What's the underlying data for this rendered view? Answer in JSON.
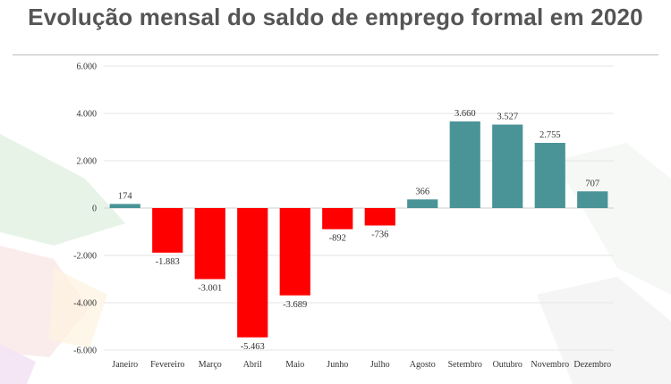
{
  "title": "Evolução mensal do saldo de emprego formal em 2020",
  "colors": {
    "negative": "#ff0000",
    "positive": "#4a9497",
    "grid": "#e6e6e6",
    "axis_text": "#333333"
  },
  "chart_data": {
    "type": "bar",
    "title": "Evolução mensal do saldo de emprego formal em 2020",
    "xlabel": "",
    "ylabel": "",
    "ylim": [
      -6000,
      6000
    ],
    "yticks": [
      6000,
      4000,
      2000,
      0,
      -2000,
      -4000,
      -6000
    ],
    "ytick_labels": [
      "6.000",
      "4.000",
      "2.000",
      "0",
      "-2.000",
      "-4.000",
      "-6.000"
    ],
    "grid": true,
    "legend": "none",
    "categories": [
      "Janeiro",
      "Fevereiro",
      "Março",
      "Abril",
      "Maio",
      "Junho",
      "Julho",
      "Agosto",
      "Setembro",
      "Outubro",
      "Novembro",
      "Dezembro"
    ],
    "values": [
      174,
      -1883,
      -3001,
      -5463,
      -3689,
      -892,
      -736,
      366,
      3660,
      3527,
      2755,
      707
    ],
    "value_labels": [
      "174",
      "-1.883",
      "-3.001",
      "-5.463",
      "-3.689",
      "-892",
      "-736",
      "366",
      "3.660",
      "3.527",
      "2.755",
      "707"
    ]
  }
}
